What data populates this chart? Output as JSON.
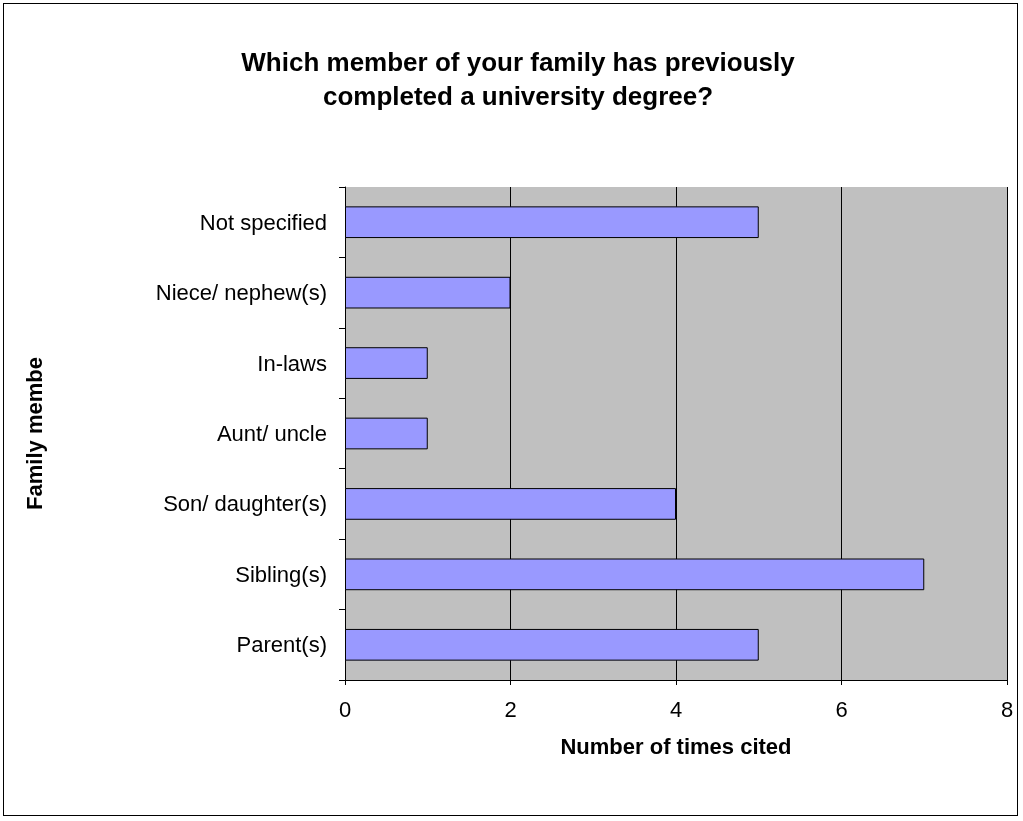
{
  "chart_data": {
    "type": "bar",
    "orientation": "horizontal",
    "title": "Which member of your family has previously\ncompleted a university degree?",
    "xlabel": "Number of times cited",
    "ylabel": "Family membe",
    "categories": [
      "Not specified",
      "Niece/ nephew(s)",
      "In-laws",
      "Aunt/ uncle",
      "Son/ daughter(s)",
      "Sibling(s)",
      "Parent(s)"
    ],
    "values": [
      5,
      2,
      1,
      1,
      4,
      7,
      5
    ],
    "color": "#9999ff",
    "xlim": [
      0,
      8
    ],
    "xticks": [
      0,
      2,
      4,
      6,
      8
    ],
    "grid": "x"
  }
}
